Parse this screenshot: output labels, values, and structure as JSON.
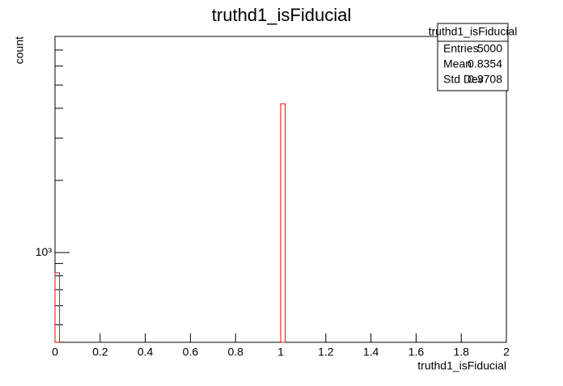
{
  "chart_data": {
    "type": "histogram",
    "title": "truthd1_isFiducial",
    "x_label": "truthd1_isFiducial",
    "y_label": "count",
    "bins": [
      0,
      0.02,
      0.04,
      0.06,
      0.08,
      0.1,
      0.12,
      0.14,
      0.16,
      0.18,
      0.2,
      0.22,
      0.24,
      0.26,
      0.28,
      0.3,
      0.32,
      0.34,
      0.36,
      0.38,
      0.4,
      0.42,
      0.44,
      0.46,
      0.48,
      0.5,
      0.52,
      0.54,
      0.56,
      0.58,
      0.6,
      0.62,
      0.64,
      0.66,
      0.68,
      0.7,
      0.72,
      0.74,
      0.76,
      0.78,
      0.8,
      0.82,
      0.84,
      0.86,
      0.88,
      0.9,
      0.92,
      0.94,
      0.96,
      0.98,
      1,
      1.02,
      1.04,
      1.06,
      1.08,
      1.1,
      1.12,
      1.14,
      1.16,
      1.18,
      1.2,
      1.22,
      1.24,
      1.26,
      1.28,
      1.3,
      1.32,
      1.34,
      1.36,
      1.38,
      1.4,
      1.42,
      1.44,
      1.46,
      1.48,
      1.5,
      1.52,
      1.54,
      1.56,
      1.58,
      1.6,
      1.62,
      1.64,
      1.66,
      1.68,
      1.7,
      1.72,
      1.74,
      1.76,
      1.78,
      1.8,
      1.82,
      1.84,
      1.86,
      1.88,
      1.9,
      1.92,
      1.94,
      1.96,
      1.98,
      2
    ],
    "values": [
      823,
      0,
      0,
      0,
      0,
      0,
      0,
      0,
      0,
      0,
      0,
      0,
      0,
      0,
      0,
      0,
      0,
      0,
      0,
      0,
      0,
      0,
      0,
      0,
      0,
      0,
      0,
      0,
      0,
      0,
      0,
      0,
      0,
      0,
      0,
      0,
      0,
      0,
      0,
      0,
      0,
      0,
      0,
      0,
      0,
      0,
      0,
      0,
      0,
      0,
      4177,
      0,
      0,
      0,
      0,
      0,
      0,
      0,
      0,
      0,
      0,
      0,
      0,
      0,
      0,
      0,
      0,
      0,
      0,
      0,
      0,
      0,
      0,
      0,
      0,
      0,
      0,
      0,
      0,
      0,
      0,
      0,
      0,
      0,
      0,
      0,
      0,
      0,
      0,
      0,
      0,
      0,
      0,
      0,
      0,
      0,
      0,
      0,
      0,
      0
    ],
    "color": "#ff0000",
    "xlim": [
      0,
      2
    ],
    "xticks": [
      0,
      0.2,
      0.4,
      0.6,
      0.8,
      1,
      1.2,
      1.4,
      1.6,
      1.8,
      2
    ],
    "ylim": [
      422,
      7980
    ],
    "log_y": true,
    "yticks": [
      {
        "value": 1000,
        "label": "10³"
      }
    ],
    "yminor": [
      500,
      600,
      700,
      800,
      900,
      2000,
      3000,
      4000,
      5000,
      6000,
      7000
    ],
    "stats": {
      "title": "truthd1_isFiducial",
      "rows": [
        [
          "Entries",
          5000
        ],
        [
          "Mean",
          0.8354
        ],
        [
          "Std Dev",
          0.3708
        ]
      ]
    }
  }
}
